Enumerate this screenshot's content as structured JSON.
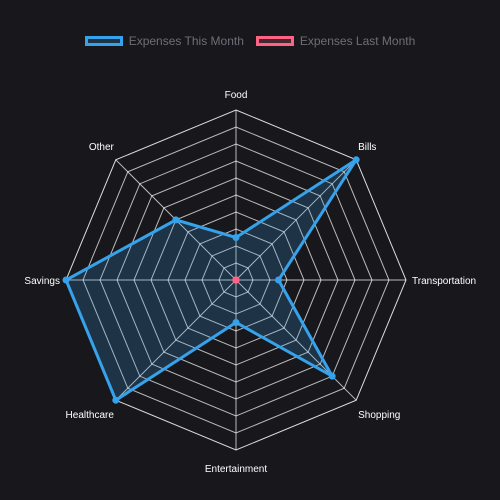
{
  "colors": {
    "background": "#18181c",
    "grid": "#ffffff",
    "series_1": "#36a2eb",
    "series_1_fill": "rgba(54,162,235,0.2)",
    "series_2": "#ff6384",
    "legend_text": "#6e6e78",
    "label_text": "#ffffff"
  },
  "chart_data": {
    "type": "radar",
    "categories": [
      "Food",
      "Bills",
      "Transportation",
      "Shopping",
      "Entertainment",
      "Healthcare",
      "Savings",
      "Other"
    ],
    "series": [
      {
        "name": "Expenses This Month",
        "values": [
          25,
          100,
          25,
          80,
          25,
          100,
          100,
          50
        ]
      },
      {
        "name": "Expenses Last Month",
        "values": [
          0,
          0,
          0,
          0,
          0,
          0,
          0,
          0
        ]
      }
    ],
    "r_range": [
      0,
      100
    ],
    "grid_levels": 10,
    "grid": true,
    "legend_position": "top"
  }
}
